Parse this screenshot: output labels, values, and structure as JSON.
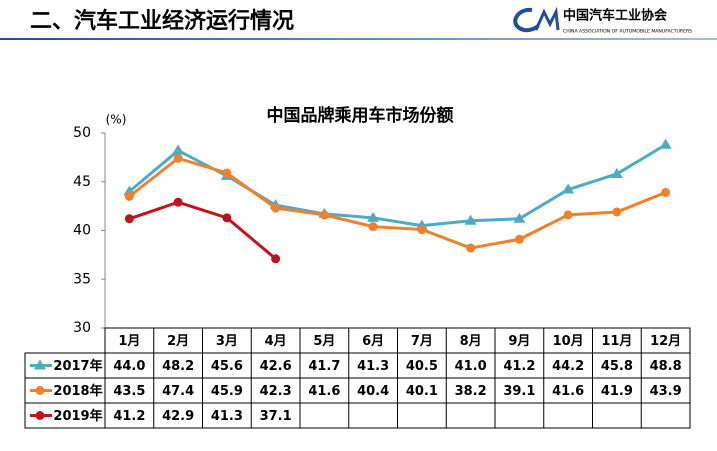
{
  "header": {
    "title": "二、汽车工业经济运行情况",
    "logo_name": "中国汽车工业协会",
    "logo_subtitle": "CHINA ASSOCIATION OF AUTOMOBILE MANUFACTURERS"
  },
  "chart_data": {
    "type": "line",
    "title": "中国品牌乘用车市场份额",
    "y_unit": "(%)",
    "categories": [
      "1月",
      "2月",
      "3月",
      "4月",
      "5月",
      "6月",
      "7月",
      "8月",
      "9月",
      "10月",
      "11月",
      "12月"
    ],
    "ylim": [
      30,
      50
    ],
    "yticks": [
      30,
      35,
      40,
      45,
      50
    ],
    "grid": false,
    "series": [
      {
        "name": "2017年",
        "color": "#4bacc6",
        "marker": "triangle",
        "values": [
          44.0,
          48.2,
          45.6,
          42.6,
          41.7,
          41.3,
          40.5,
          41.0,
          41.2,
          44.2,
          45.8,
          48.8
        ],
        "value_labels": [
          "44.0",
          "48.2",
          "45.6",
          "42.6",
          "41.7",
          "41.3",
          "40.5",
          "41.0",
          "41.2",
          "44.2",
          "45.8",
          "48.8"
        ]
      },
      {
        "name": "2018年",
        "color": "#f0802a",
        "marker": "circle",
        "values": [
          43.5,
          47.4,
          45.9,
          42.3,
          41.6,
          40.4,
          40.1,
          38.2,
          39.1,
          41.6,
          41.9,
          43.9
        ],
        "value_labels": [
          "43.5",
          "47.4",
          "45.9",
          "42.3",
          "41.6",
          "40.4",
          "40.1",
          "38.2",
          "39.1",
          "41.6",
          "41.9",
          "43.9"
        ]
      },
      {
        "name": "2019年",
        "color": "#c0141c",
        "marker": "circle",
        "values": [
          41.2,
          42.9,
          41.3,
          37.1,
          null,
          null,
          null,
          null,
          null,
          null,
          null,
          null
        ],
        "value_labels": [
          "41.2",
          "42.9",
          "41.3",
          "37.1",
          null,
          null,
          null,
          null,
          null,
          null,
          null,
          null
        ]
      }
    ]
  }
}
